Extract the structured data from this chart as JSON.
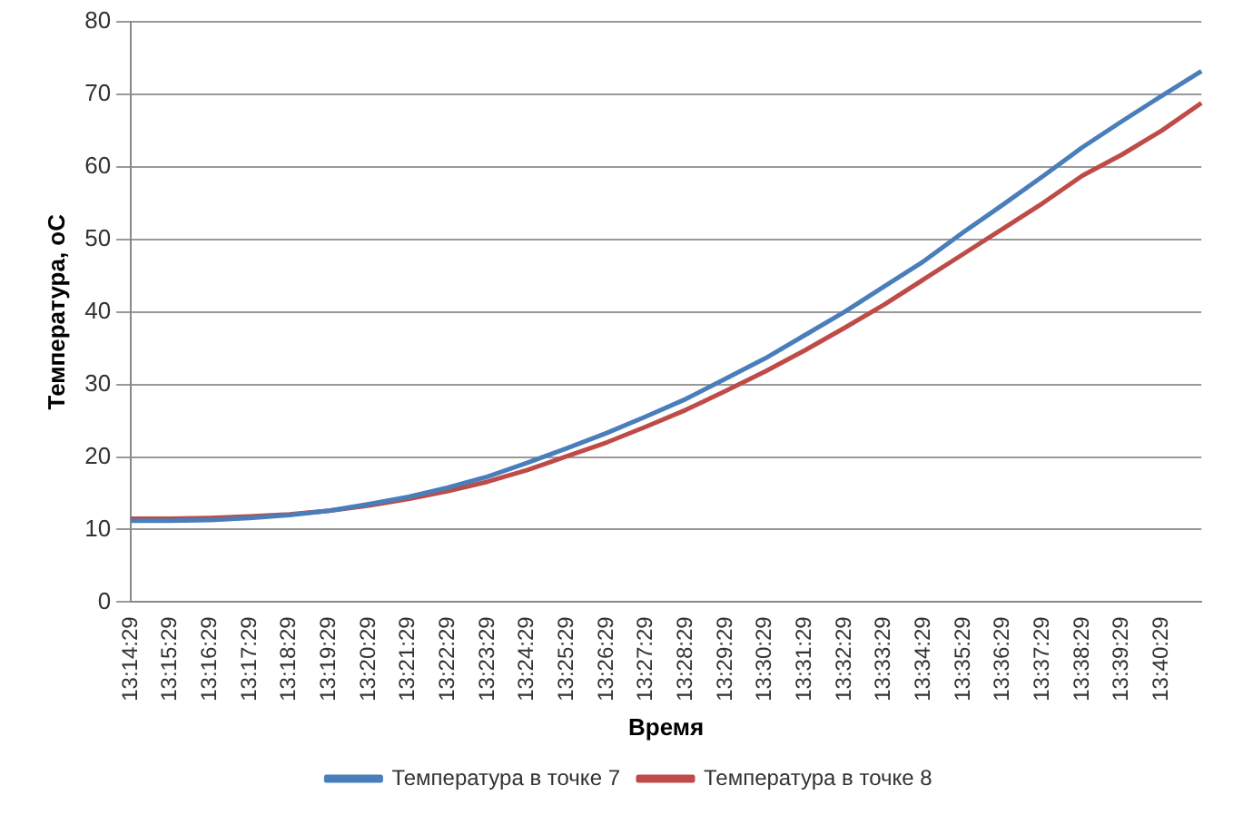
{
  "chart_data": {
    "type": "line",
    "xlabel": "Время",
    "ylabel": "Температура, оС",
    "categories": [
      "13:14:29",
      "13:15:29",
      "13:16:29",
      "13:17:29",
      "13:18:29",
      "13:19:29",
      "13:20:29",
      "13:21:29",
      "13:22:29",
      "13:23:29",
      "13:24:29",
      "13:25:29",
      "13:26:29",
      "13:27:29",
      "13:28:29",
      "13:29:29",
      "13:30:29",
      "13:31:29",
      "13:32:29",
      "13:33:29",
      "13:34:29",
      "13:35:29",
      "13:36:29",
      "13:37:29",
      "13:38:29",
      "13:39:29",
      "13:40:29",
      null
    ],
    "series": [
      {
        "name": "Температура в точке 7",
        "color": "#4a7ebb",
        "values": [
          11.2,
          11.2,
          11.3,
          11.6,
          12,
          12.6,
          13.5,
          14.5,
          15.8,
          17.3,
          19.2,
          21.2,
          23.3,
          25.6,
          28,
          30.8,
          33.6,
          36.8,
          40,
          43.5,
          47,
          51,
          54.8,
          58.7,
          62.7,
          66.3,
          69.8,
          73.2
        ]
      },
      {
        "name": "Температура в точке 8",
        "color": "#be4b48",
        "values": [
          11.5,
          11.5,
          11.6,
          11.8,
          12.1,
          12.6,
          13.3,
          14.2,
          15.3,
          16.6,
          18.2,
          20.1,
          22,
          24.2,
          26.5,
          29.1,
          31.8,
          34.7,
          37.8,
          41,
          44.5,
          48,
          51.5,
          55,
          58.8,
          61.7,
          65,
          68.8
        ]
      }
    ],
    "ylim": [
      0,
      80
    ],
    "yticks": [
      0,
      10,
      20,
      30,
      40,
      50,
      60,
      70,
      80
    ],
    "grid": "y",
    "legend": "bottom",
    "marker": "none",
    "line_style": "solid"
  }
}
